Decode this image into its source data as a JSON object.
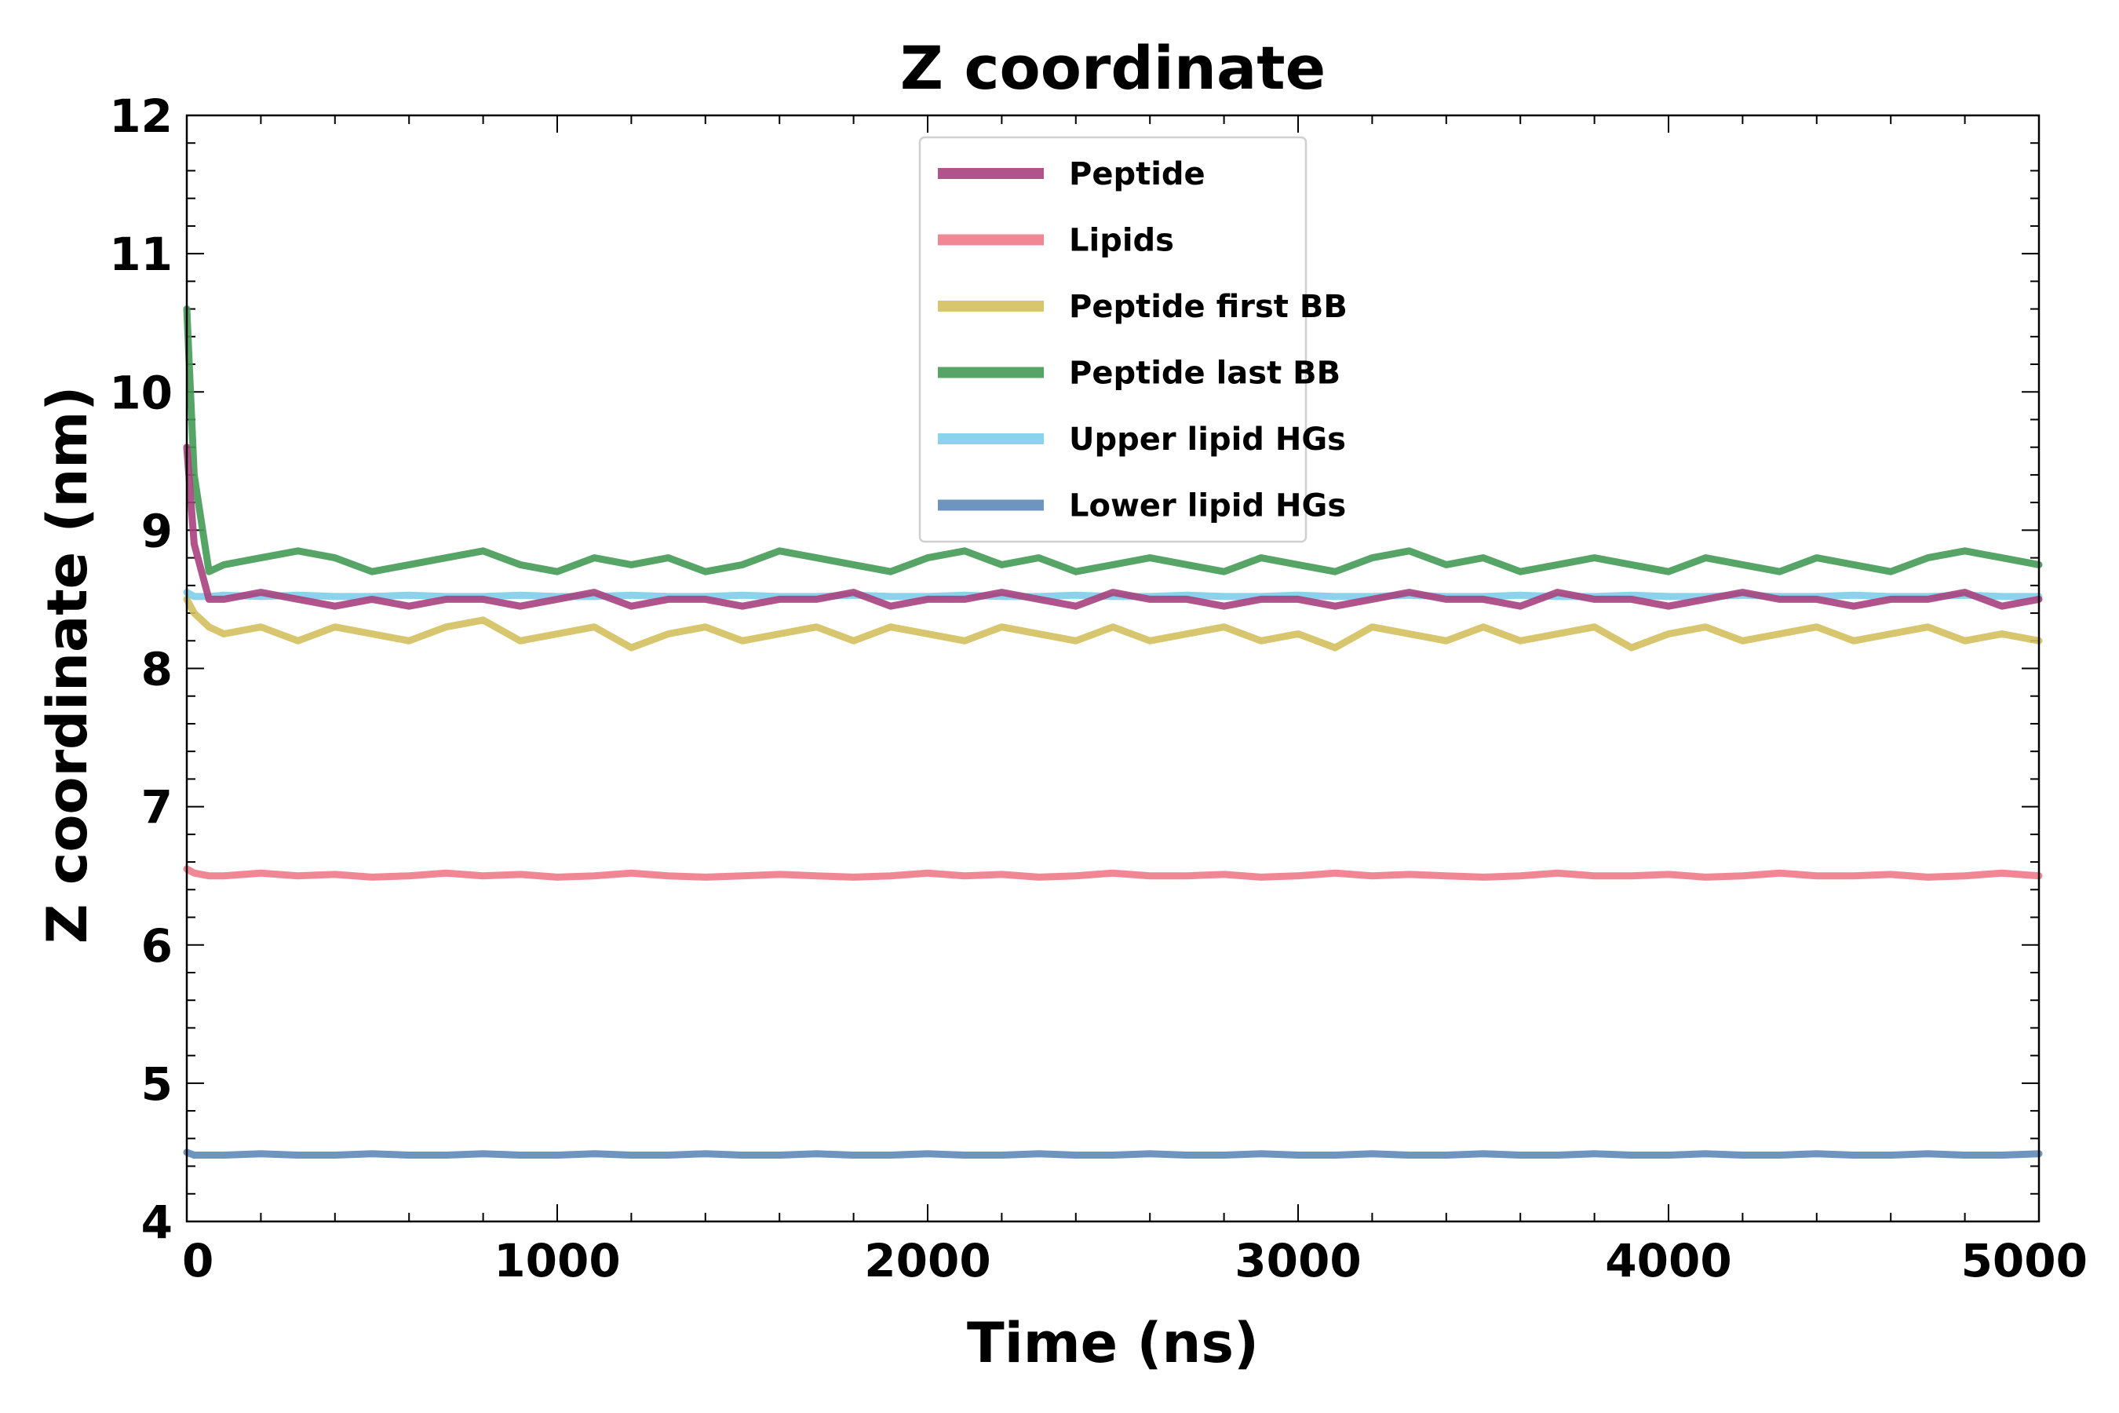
{
  "chart_data": {
    "type": "line",
    "title": "Z coordinate",
    "xlabel": "Time (ns)",
    "ylabel": "Z coordinate (nm)",
    "xlim": [
      0,
      5000
    ],
    "ylim": [
      4,
      12
    ],
    "xticks": [
      0,
      1000,
      2000,
      3000,
      4000,
      5000
    ],
    "yticks": [
      4,
      5,
      6,
      7,
      8,
      9,
      10,
      11,
      12
    ],
    "grid": false,
    "legend_position": "top-center",
    "x": [
      0,
      20,
      60,
      100,
      200,
      300,
      400,
      500,
      600,
      700,
      800,
      900,
      1000,
      1100,
      1200,
      1300,
      1400,
      1500,
      1600,
      1700,
      1800,
      1900,
      2000,
      2100,
      2200,
      2300,
      2400,
      2500,
      2600,
      2700,
      2800,
      2900,
      3000,
      3100,
      3200,
      3300,
      3400,
      3500,
      3600,
      3700,
      3800,
      3900,
      4000,
      4100,
      4200,
      4300,
      4400,
      4500,
      4600,
      4700,
      4800,
      4900,
      5000
    ],
    "series": [
      {
        "name": "Peptide",
        "color": "#A8417E",
        "values": [
          9.6,
          8.9,
          8.5,
          8.5,
          8.55,
          8.5,
          8.45,
          8.5,
          8.45,
          8.5,
          8.5,
          8.45,
          8.5,
          8.55,
          8.45,
          8.5,
          8.5,
          8.45,
          8.5,
          8.5,
          8.55,
          8.45,
          8.5,
          8.5,
          8.55,
          8.5,
          8.45,
          8.55,
          8.5,
          8.5,
          8.45,
          8.5,
          8.5,
          8.45,
          8.5,
          8.55,
          8.5,
          8.5,
          8.45,
          8.55,
          8.5,
          8.5,
          8.45,
          8.5,
          8.55,
          8.5,
          8.5,
          8.45,
          8.5,
          8.5,
          8.55,
          8.45,
          8.5
        ]
      },
      {
        "name": "Lipids",
        "color": "#EE7A8A",
        "values": [
          6.55,
          6.52,
          6.5,
          6.5,
          6.52,
          6.5,
          6.51,
          6.49,
          6.5,
          6.52,
          6.5,
          6.51,
          6.49,
          6.5,
          6.52,
          6.5,
          6.49,
          6.5,
          6.51,
          6.5,
          6.49,
          6.5,
          6.52,
          6.5,
          6.51,
          6.49,
          6.5,
          6.52,
          6.5,
          6.5,
          6.51,
          6.49,
          6.5,
          6.52,
          6.5,
          6.51,
          6.5,
          6.49,
          6.5,
          6.52,
          6.5,
          6.5,
          6.51,
          6.49,
          6.5,
          6.52,
          6.5,
          6.5,
          6.51,
          6.49,
          6.5,
          6.52,
          6.5
        ]
      },
      {
        "name": "Peptide first BB",
        "color": "#D4C05F",
        "values": [
          8.5,
          8.4,
          8.3,
          8.25,
          8.3,
          8.2,
          8.3,
          8.25,
          8.2,
          8.3,
          8.35,
          8.2,
          8.25,
          8.3,
          8.15,
          8.25,
          8.3,
          8.2,
          8.25,
          8.3,
          8.2,
          8.3,
          8.25,
          8.2,
          8.3,
          8.25,
          8.2,
          8.3,
          8.2,
          8.25,
          8.3,
          8.2,
          8.25,
          8.15,
          8.3,
          8.25,
          8.2,
          8.3,
          8.2,
          8.25,
          8.3,
          8.15,
          8.25,
          8.3,
          8.2,
          8.25,
          8.3,
          8.2,
          8.25,
          8.3,
          8.2,
          8.25,
          8.2
        ]
      },
      {
        "name": "Peptide last BB",
        "color": "#449B57",
        "values": [
          10.6,
          9.4,
          8.7,
          8.75,
          8.8,
          8.85,
          8.8,
          8.7,
          8.75,
          8.8,
          8.85,
          8.75,
          8.7,
          8.8,
          8.75,
          8.8,
          8.7,
          8.75,
          8.85,
          8.8,
          8.75,
          8.7,
          8.8,
          8.85,
          8.75,
          8.8,
          8.7,
          8.75,
          8.8,
          8.75,
          8.7,
          8.8,
          8.75,
          8.7,
          8.8,
          8.85,
          8.75,
          8.8,
          8.7,
          8.75,
          8.8,
          8.75,
          8.7,
          8.8,
          8.75,
          8.7,
          8.8,
          8.75,
          8.7,
          8.8,
          8.85,
          8.8,
          8.75
        ]
      },
      {
        "name": "Upper lipid HGs",
        "color": "#7ECDEB",
        "values": [
          8.55,
          8.52,
          8.52,
          8.53,
          8.52,
          8.53,
          8.52,
          8.52,
          8.53,
          8.52,
          8.52,
          8.53,
          8.52,
          8.52,
          8.53,
          8.52,
          8.52,
          8.53,
          8.52,
          8.52,
          8.53,
          8.52,
          8.52,
          8.53,
          8.52,
          8.52,
          8.53,
          8.52,
          8.52,
          8.53,
          8.52,
          8.52,
          8.53,
          8.52,
          8.52,
          8.53,
          8.52,
          8.52,
          8.53,
          8.52,
          8.52,
          8.53,
          8.52,
          8.52,
          8.53,
          8.52,
          8.52,
          8.53,
          8.52,
          8.52,
          8.53,
          8.52,
          8.52
        ]
      },
      {
        "name": "Lower lipid HGs",
        "color": "#5E89B8",
        "values": [
          4.5,
          4.48,
          4.48,
          4.48,
          4.49,
          4.48,
          4.48,
          4.49,
          4.48,
          4.48,
          4.49,
          4.48,
          4.48,
          4.49,
          4.48,
          4.48,
          4.49,
          4.48,
          4.48,
          4.49,
          4.48,
          4.48,
          4.49,
          4.48,
          4.48,
          4.49,
          4.48,
          4.48,
          4.49,
          4.48,
          4.48,
          4.49,
          4.48,
          4.48,
          4.49,
          4.48,
          4.48,
          4.49,
          4.48,
          4.48,
          4.49,
          4.48,
          4.48,
          4.49,
          4.48,
          4.48,
          4.49,
          4.48,
          4.48,
          4.49,
          4.48,
          4.48,
          4.49
        ]
      }
    ]
  }
}
